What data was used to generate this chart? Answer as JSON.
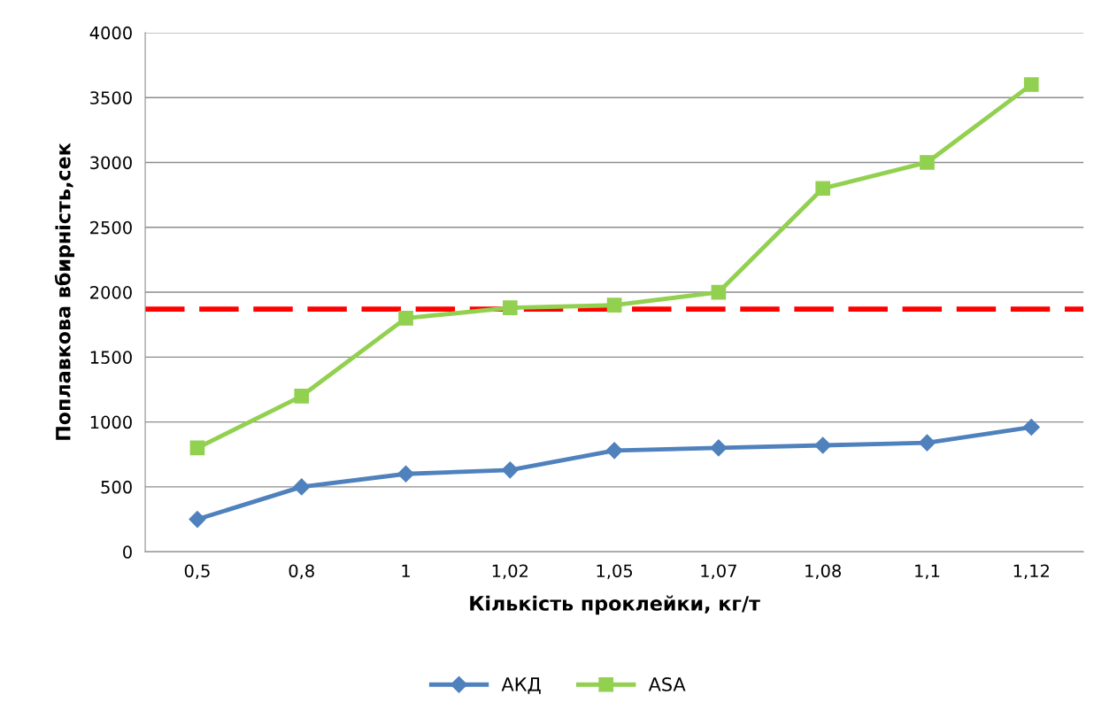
{
  "chart_data": {
    "type": "line",
    "xlabel": "Кількість проклейки, кг/т",
    "ylabel": "Поплавкова вбирність,сек",
    "categories": [
      "0,5",
      "0,8",
      "1",
      "1,02",
      "1,05",
      "1,07",
      "1,08",
      "1,1",
      "1,12"
    ],
    "series": [
      {
        "name": "АКД",
        "color": "#4f81bd",
        "marker": "diamond",
        "values": [
          250,
          500,
          600,
          630,
          780,
          800,
          820,
          840,
          960
        ]
      },
      {
        "name": "ASA",
        "color": "#92d050",
        "marker": "square",
        "values": [
          800,
          1200,
          1800,
          1880,
          1900,
          2000,
          2800,
          3000,
          3600
        ]
      }
    ],
    "ylim": [
      0,
      4000
    ],
    "yticks": [
      0,
      500,
      1000,
      1500,
      2000,
      2500,
      3000,
      3500,
      4000
    ],
    "ref_lines": [
      {
        "axis": "y",
        "value": 1870,
        "color": "#ff0000",
        "line_style": "dashed"
      }
    ],
    "grid": "y",
    "legend": "bottom",
    "line_style": "solid"
  }
}
